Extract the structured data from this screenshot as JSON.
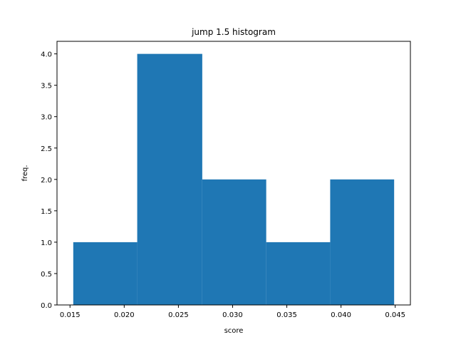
{
  "chart_data": {
    "type": "bar",
    "title": "jump 1.5 histogram",
    "xlabel": "score",
    "ylabel": "freq.",
    "bin_edges": [
      0.0153,
      0.0212,
      0.0272,
      0.0331,
      0.039,
      0.0449
    ],
    "values": [
      1,
      4,
      2,
      1,
      2
    ],
    "xlim": [
      0.0138,
      0.0464
    ],
    "ylim": [
      0,
      4.2
    ],
    "xticks": [
      0.015,
      0.02,
      0.025,
      0.03,
      0.035,
      0.04,
      0.045
    ],
    "xtick_labels": [
      "0.015",
      "0.020",
      "0.025",
      "0.030",
      "0.035",
      "0.040",
      "0.045"
    ],
    "yticks": [
      0.0,
      0.5,
      1.0,
      1.5,
      2.0,
      2.5,
      3.0,
      3.5,
      4.0
    ],
    "ytick_labels": [
      "0.0",
      "0.5",
      "1.0",
      "1.5",
      "2.0",
      "2.5",
      "3.0",
      "3.5",
      "4.0"
    ],
    "grid": false,
    "colors": {
      "bar": "#1f77b4",
      "axis": "#000000",
      "background": "#ffffff"
    }
  }
}
